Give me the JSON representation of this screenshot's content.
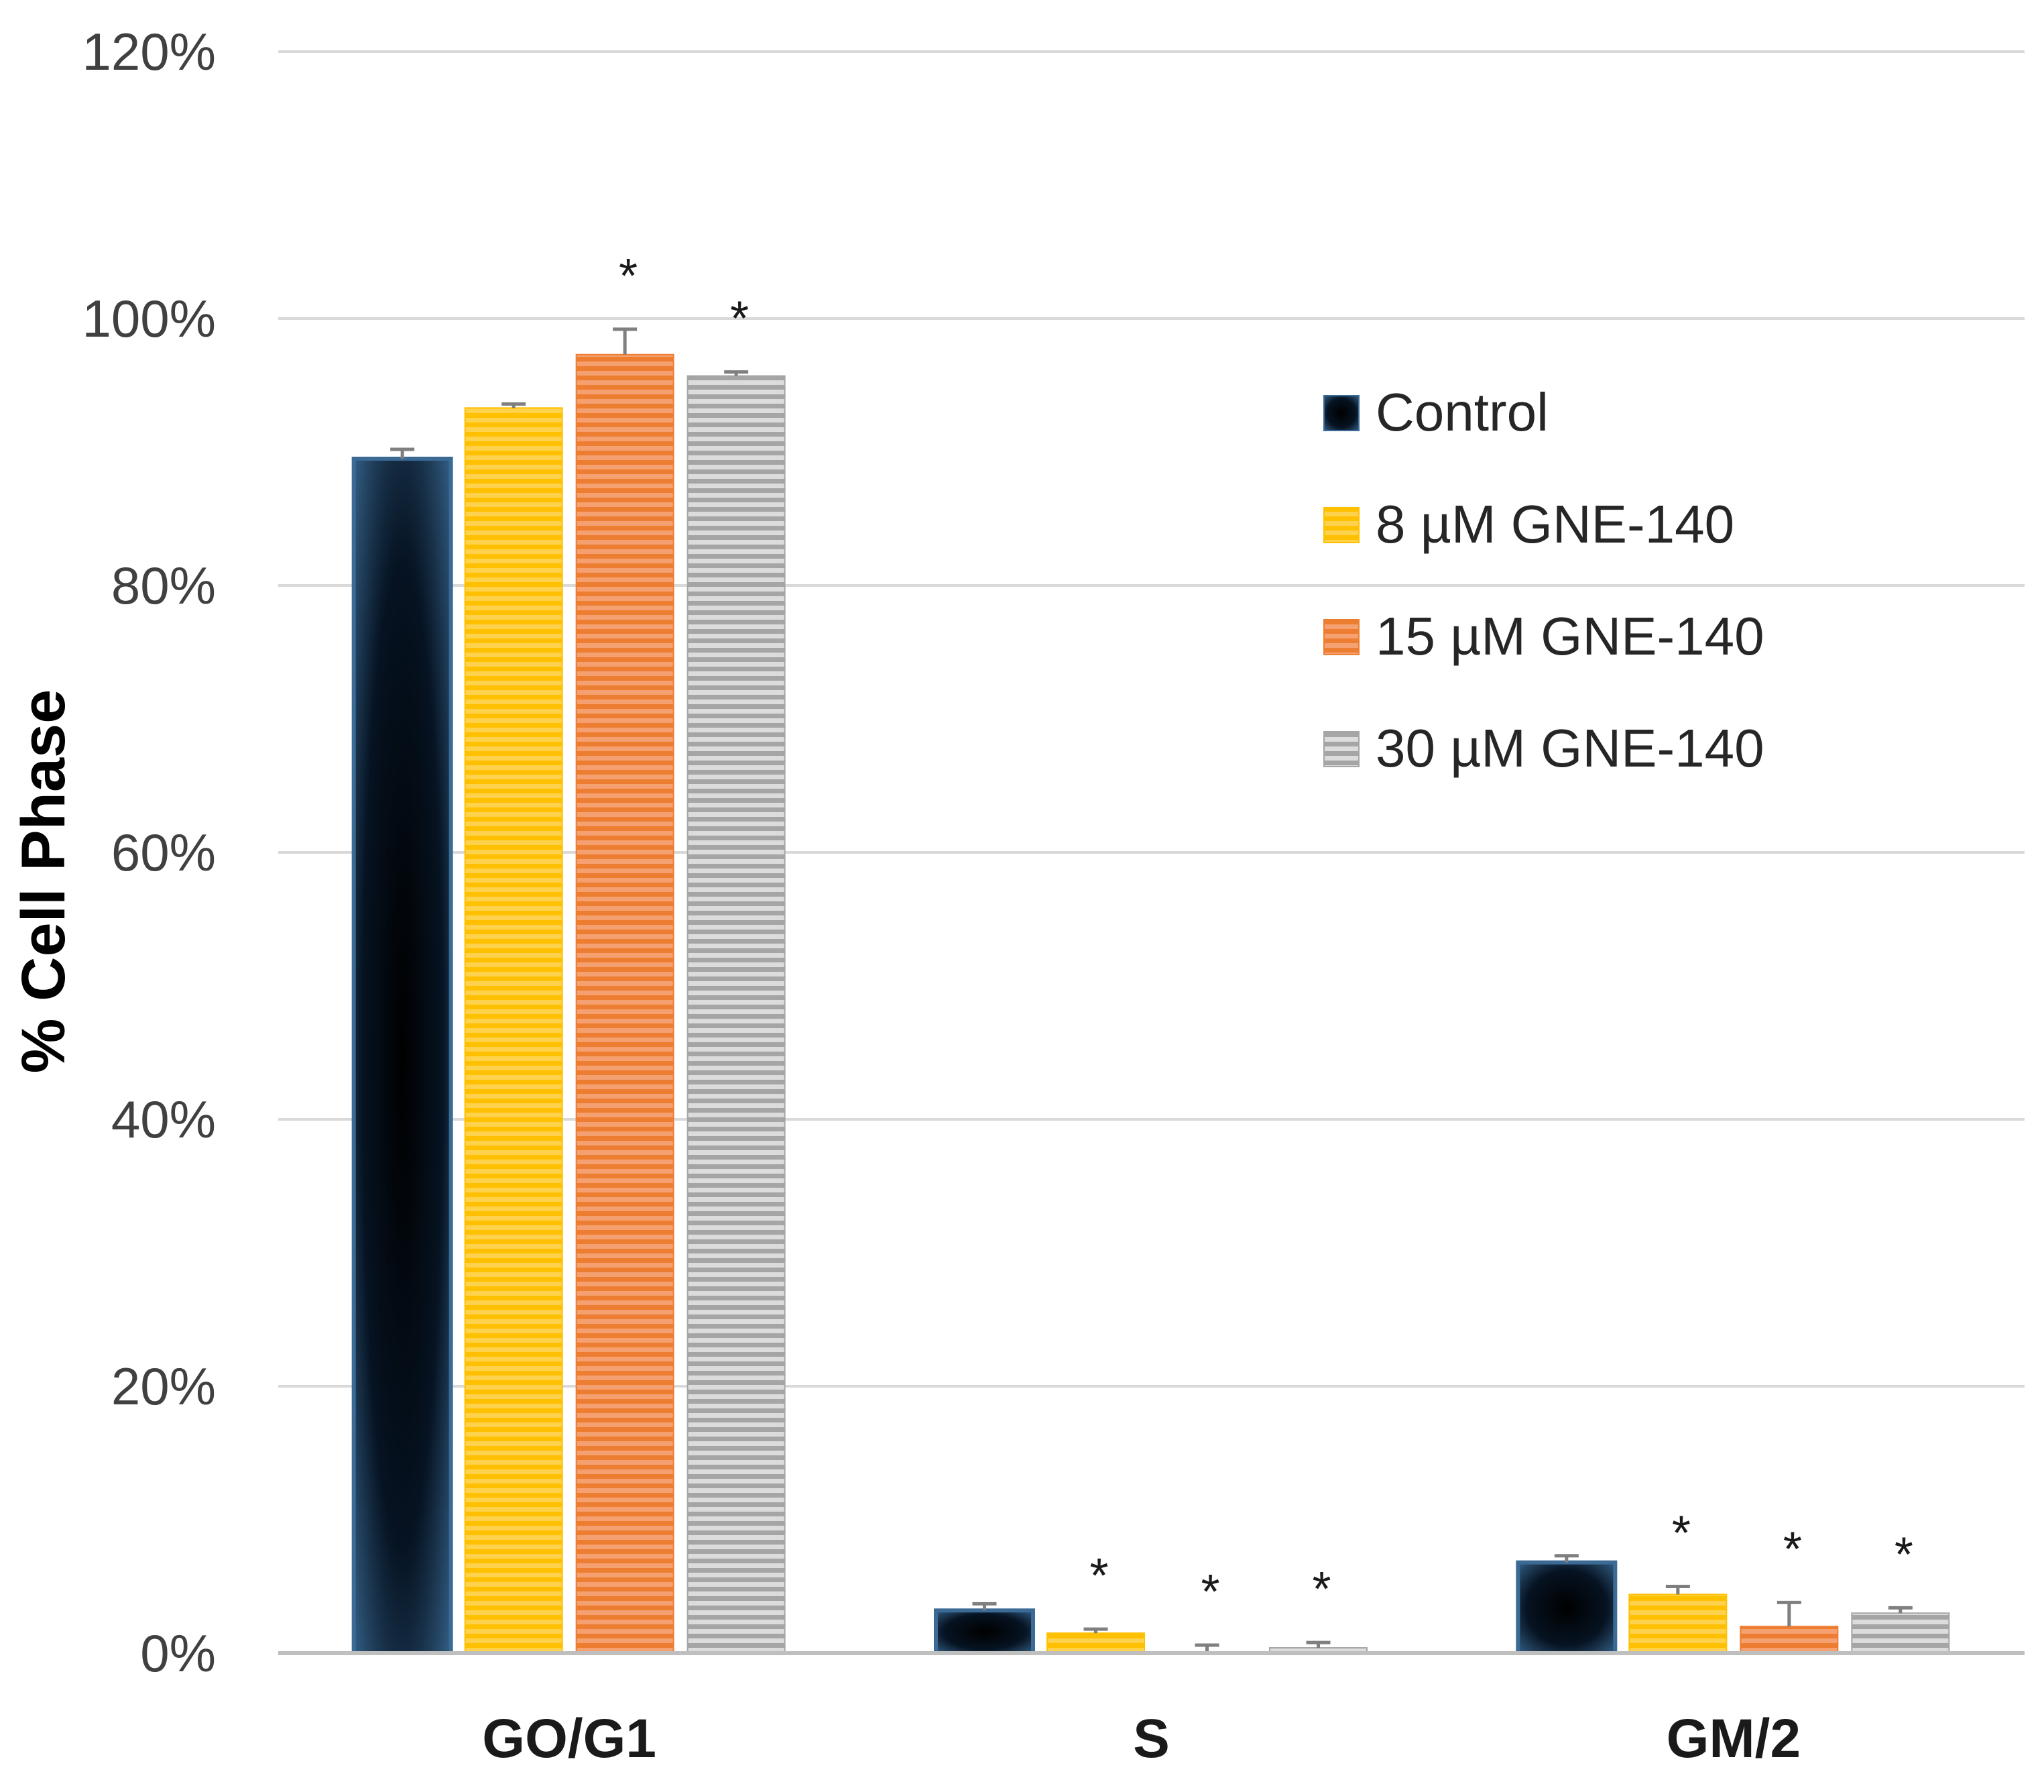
{
  "chart_data": {
    "type": "bar",
    "title": "",
    "xlabel": "",
    "ylabel": "% Cell Phase",
    "ylim": [
      0,
      120
    ],
    "yticks": [
      0,
      20,
      40,
      60,
      80,
      100,
      120
    ],
    "ytick_labels": [
      "0%",
      "20%",
      "40%",
      "60%",
      "80%",
      "100%",
      "120%"
    ],
    "grid": true,
    "legend_position": "top-right",
    "categories": [
      "GO/G1",
      "S",
      "GM/2"
    ],
    "series": [
      {
        "name": "Control",
        "color": "#1f3d5c",
        "values": [
          89.5,
          3.2,
          6.8
        ],
        "errors": [
          0.7,
          0.5,
          0.5
        ],
        "significance": [
          "",
          "",
          ""
        ]
      },
      {
        "name": "8 µM GNE-140",
        "color": "#ffc000",
        "values": [
          93.3,
          1.5,
          4.4
        ],
        "errors": [
          0.3,
          0.3,
          0.6
        ],
        "significance": [
          "",
          "*",
          "*"
        ]
      },
      {
        "name": "15 µM GNE-140",
        "color": "#ed7d31",
        "values": [
          97.3,
          0.1,
          2.0
        ],
        "errors": [
          1.9,
          0.5,
          1.8
        ],
        "significance": [
          "*",
          "*",
          "*"
        ]
      },
      {
        "name": "30 µM GNE-140",
        "color": "#a5a5a5",
        "values": [
          95.7,
          0.4,
          3.0
        ],
        "errors": [
          0.3,
          0.4,
          0.4
        ],
        "significance": [
          "*",
          "*",
          "*"
        ]
      }
    ]
  }
}
